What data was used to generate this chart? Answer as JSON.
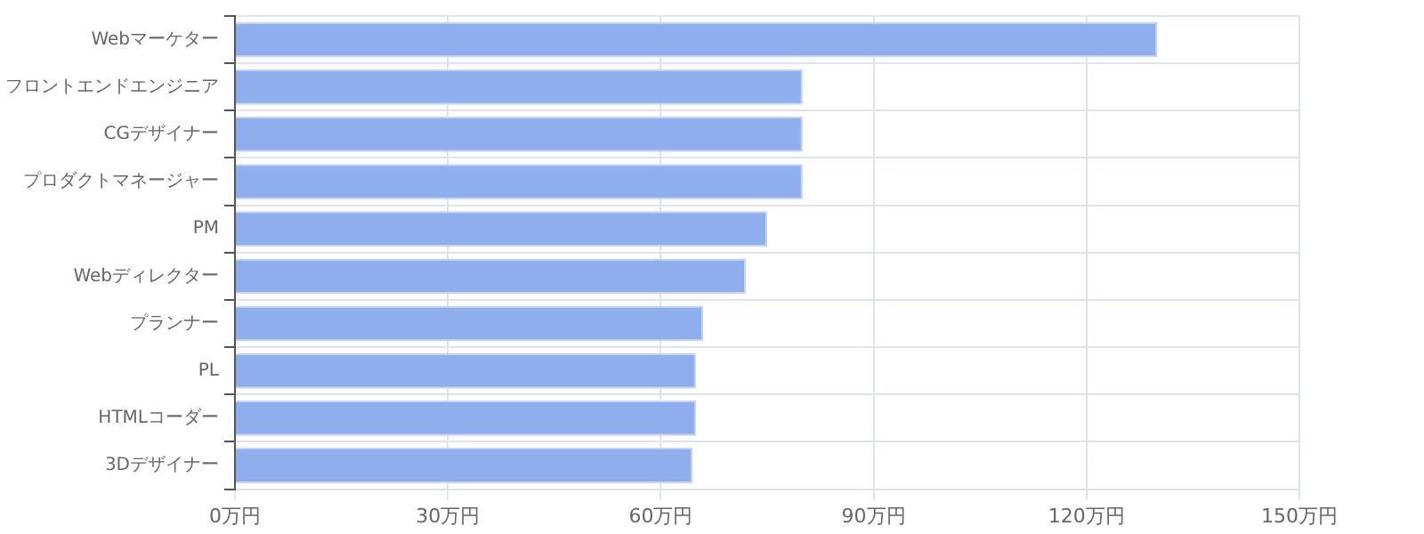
{
  "chart_data": {
    "type": "bar",
    "orientation": "horizontal",
    "categories": [
      "Webマーケター",
      "フロントエンドエンジニア",
      "CGデザイナー",
      "プロダクトマネージャー",
      "PM",
      "Webディレクター",
      "プランナー",
      "PL",
      "HTMLコーダー",
      "3Dデザイナー"
    ],
    "values": [
      130,
      80,
      80,
      80,
      75,
      72,
      66,
      65,
      65,
      64.5
    ],
    "color": "#8eaeee",
    "xlim": [
      0,
      150
    ],
    "xticks": [
      {
        "value": 0,
        "label": "0万円"
      },
      {
        "value": 30,
        "label": "30万円"
      },
      {
        "value": 60,
        "label": "60万円"
      },
      {
        "value": 90,
        "label": "90万円"
      },
      {
        "value": 120,
        "label": "120万円"
      },
      {
        "value": 150,
        "label": "150万円"
      }
    ],
    "grid": true,
    "legend": false
  }
}
